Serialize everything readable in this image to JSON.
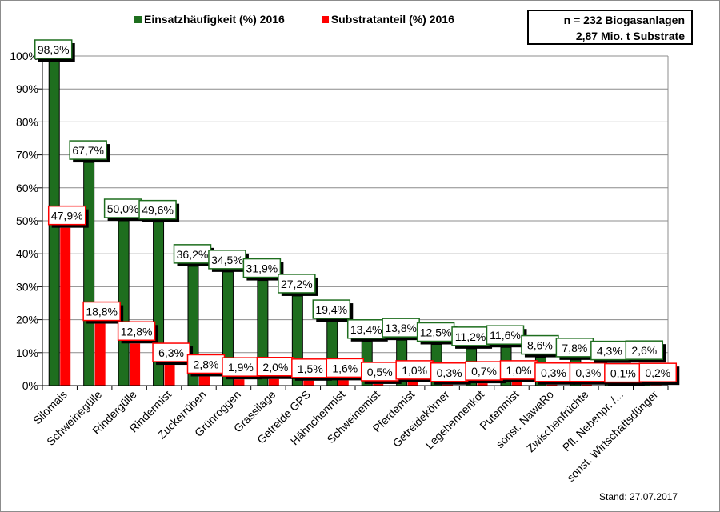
{
  "chart_data": {
    "type": "bar",
    "categories": [
      "Silomais",
      "Schweinegülle",
      "Rindergülle",
      "Rindermist",
      "Zuckerrüben",
      "Grünroggen",
      "Grassilage",
      "Getreide GPS",
      "Hähnchenmist",
      "Schweinemist",
      "Pferdemist",
      "Getreidekörner",
      "Legehennenkot",
      "Putenmist",
      "sonst. NawaRo",
      "Zwischenfrüchte",
      "Pfl. Nebenpr. /...",
      "sonst. Wirtschaftsdünger"
    ],
    "series": [
      {
        "name": "Einsatzhäufigkeit (%) 2016",
        "color": "#1e6e1e",
        "values": [
          98.3,
          67.7,
          50.0,
          49.6,
          36.2,
          34.5,
          31.9,
          27.2,
          19.4,
          13.4,
          13.8,
          12.5,
          11.2,
          11.6,
          8.6,
          7.8,
          4.3,
          2.6
        ],
        "labels": [
          "98,3%",
          "67,7%",
          "50,0%",
          "49,6%",
          "36,2%",
          "34,5%",
          "31,9%",
          "27,2%",
          "19,4%",
          "13,4%",
          "13,8%",
          "12,5%",
          "11,2%",
          "11,6%",
          "8,6%",
          "7,8%",
          "4,3%",
          "2,6%"
        ]
      },
      {
        "name": "Substratanteil (%) 2016",
        "color": "#ff0000",
        "values": [
          47.9,
          18.8,
          12.8,
          6.3,
          2.8,
          1.9,
          2.0,
          1.5,
          1.6,
          0.5,
          1.0,
          0.3,
          0.7,
          1.0,
          0.3,
          0.3,
          0.1,
          0.2
        ],
        "labels": [
          "47,9%",
          "18,8%",
          "12,8%",
          "6,3%",
          "2,8%",
          "1,9%",
          "2,0%",
          "1,5%",
          "1,6%",
          "0,5%",
          "1,0%",
          "0,3%",
          "0,7%",
          "1,0%",
          "0,3%",
          "0,3%",
          "0,1%",
          "0,2%"
        ]
      }
    ],
    "y_ticks": [
      "0%",
      "10%",
      "20%",
      "30%",
      "40%",
      "50%",
      "60%",
      "70%",
      "80%",
      "90%",
      "100%"
    ],
    "ylim": [
      0,
      100
    ],
    "grid": true,
    "title": "",
    "xlabel": "",
    "ylabel": ""
  },
  "legend": {
    "items": [
      {
        "label": "Einsatzhäufigkeit (%) 2016",
        "color": "#1e6e1e"
      },
      {
        "label": "Substratanteil (%) 2016",
        "color": "#ff0000"
      }
    ]
  },
  "sample_box": {
    "line1": "n = 232 Biogasanlagen",
    "line2": "2,87 Mio. t Substrate"
  },
  "stand": "Stand: 27.07.2017"
}
